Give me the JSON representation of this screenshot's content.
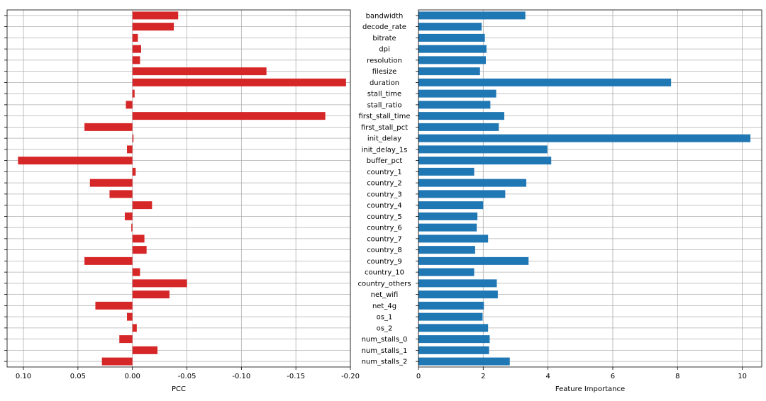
{
  "chart_data": [
    {
      "type": "bar",
      "orientation": "horizontal",
      "xlabel": "PCC",
      "xlim": [
        0.115,
        -0.2
      ],
      "x_inverted": true,
      "x_ticks": [
        0.1,
        0.05,
        0.0,
        -0.05,
        -0.1,
        -0.15,
        -0.2
      ],
      "x_tick_labels": [
        "0.10",
        "0.05",
        "0.00",
        "-0.05",
        "-0.10",
        "-0.15",
        "-0.20"
      ],
      "grid": true,
      "bar_color": "#d62728",
      "categories": [
        "bandwidth",
        "decode_rate",
        "bitrate",
        "dpi",
        "resolution",
        "filesize",
        "duration",
        "stall_time",
        "stall_ratio",
        "first_stall_time",
        "first_stall_pct",
        "init_delay",
        "init_delay_1s",
        "buffer_pct",
        "country_1",
        "country_2",
        "country_3",
        "country_4",
        "country_5",
        "country_6",
        "country_7",
        "country_8",
        "country_9",
        "country_10",
        "country_others",
        "net_wifi",
        "net_4g",
        "os_1",
        "os_2",
        "num_stalls_0",
        "num_stalls_1",
        "num_stalls_2"
      ],
      "values": [
        -0.042,
        -0.038,
        -0.005,
        -0.008,
        -0.007,
        -0.123,
        -0.196,
        -0.002,
        0.006,
        -0.177,
        0.044,
        -0.001,
        0.005,
        0.105,
        -0.003,
        0.039,
        0.021,
        -0.018,
        0.007,
        0.001,
        -0.011,
        -0.013,
        0.044,
        -0.007,
        -0.05,
        -0.034,
        0.034,
        0.005,
        -0.004,
        0.012,
        -0.023,
        0.028
      ]
    },
    {
      "type": "bar",
      "orientation": "horizontal",
      "xlabel": "Feature Importance",
      "xlim": [
        0,
        10.6
      ],
      "x_ticks": [
        0,
        2,
        4,
        6,
        8,
        10
      ],
      "x_tick_labels": [
        "0",
        "2",
        "4",
        "6",
        "8",
        "10"
      ],
      "grid": true,
      "bar_color": "#1f77b4",
      "categories": [
        "bandwidth",
        "decode_rate",
        "bitrate",
        "dpi",
        "resolution",
        "filesize",
        "duration",
        "stall_time",
        "stall_ratio",
        "first_stall_time",
        "first_stall_pct",
        "init_delay",
        "init_delay_1s",
        "buffer_pct",
        "country_1",
        "country_2",
        "country_3",
        "country_4",
        "country_5",
        "country_6",
        "country_7",
        "country_8",
        "country_9",
        "country_10",
        "country_others",
        "net_wifi",
        "net_4g",
        "os_1",
        "os_2",
        "num_stalls_0",
        "num_stalls_1",
        "num_stalls_2"
      ],
      "values": [
        3.3,
        1.95,
        2.05,
        2.1,
        2.08,
        1.9,
        7.8,
        2.4,
        2.22,
        2.65,
        2.48,
        10.25,
        3.98,
        4.1,
        1.72,
        3.33,
        2.68,
        2.0,
        1.82,
        1.8,
        2.15,
        1.75,
        3.4,
        1.72,
        2.42,
        2.45,
        2.02,
        1.98,
        2.15,
        2.2,
        2.18,
        2.82
      ]
    }
  ]
}
